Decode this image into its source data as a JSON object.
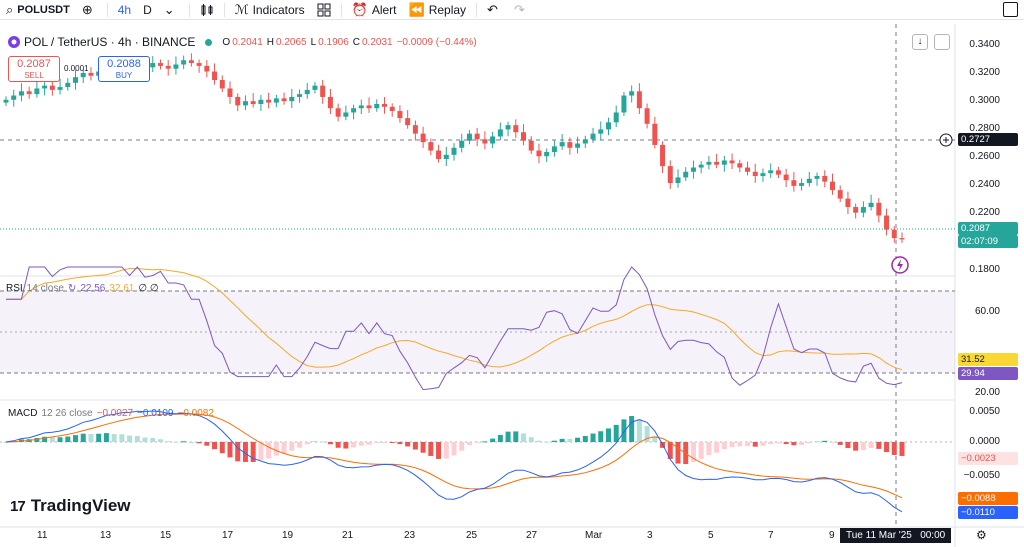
{
  "toolbar": {
    "symbol": "POLUSDT",
    "interval": "4h",
    "interval_alt": "D",
    "indicators_label": "Indicators",
    "alert_label": "Alert",
    "replay_label": "Replay"
  },
  "legend": {
    "title": "POL / TetherUS · 4h · BINANCE",
    "open_label": "O",
    "open": "0.2041",
    "high_label": "H",
    "high": "0.2065",
    "low_label": "L",
    "low": "0.1906",
    "close_label": "C",
    "close": "0.2031",
    "change": "−0.0009 (−0.44%)"
  },
  "trade": {
    "sell_price": "0.2087",
    "sell_label": "SELL",
    "buy_price": "0.2088",
    "buy_label": "BUY",
    "spread": "0.0001"
  },
  "price_axis": {
    "labels": [
      "0.3400",
      "0.3200",
      "0.3000",
      "0.2800",
      "0.2600",
      "0.2400",
      "0.2200",
      "0.1800"
    ],
    "crosshair_price": "0.2727",
    "last_price": "0.2087",
    "countdown": "02:07:09"
  },
  "rsi": {
    "label": "RSI",
    "params": "14 close",
    "value1": "22.56",
    "value2": "32.61",
    "extra": "∅ ∅",
    "axis_labels": [
      "60.00",
      "20.00"
    ],
    "tag1": "31.52",
    "tag2": "29.94"
  },
  "macd": {
    "label": "MACD",
    "params": "12 26 close",
    "hist": "−0.0027",
    "macd": "−0.0109",
    "signal": "−0.0082",
    "axis_labels": [
      "0.0050",
      "0.0000",
      "−0.0050"
    ],
    "tag_hist": "−0.0023",
    "tag_signal": "−0.0088",
    "tag_macd": "−0.0110"
  },
  "time_axis": {
    "labels": [
      "11",
      "13",
      "15",
      "17",
      "19",
      "21",
      "23",
      "25",
      "27",
      "Mar",
      "3",
      "5",
      "7",
      "9"
    ],
    "crosshair_date": "Tue 11 Mar '25",
    "crosshair_time": "00:00"
  },
  "branding": {
    "logo_text": "TradingView"
  },
  "colors": {
    "up": "#26a69a",
    "down": "#ef5350",
    "rsi": "#7e57c2",
    "macd": "#2962ff",
    "signal": "#ff6d00",
    "accent": "#2962ff"
  },
  "chart_data": {
    "type": "candlestick",
    "title": "POL / TetherUS · 4h · BINANCE",
    "ylim": [
      0.18,
      0.35
    ],
    "x_ticks": [
      "11",
      "13",
      "15",
      "17",
      "19",
      "21",
      "23",
      "25",
      "27",
      "Mar",
      "3",
      "5",
      "7",
      "9"
    ],
    "closes": [
      0.302,
      0.305,
      0.308,
      0.306,
      0.31,
      0.312,
      0.309,
      0.311,
      0.314,
      0.318,
      0.321,
      0.319,
      0.322,
      0.325,
      0.323,
      0.326,
      0.324,
      0.327,
      0.325,
      0.328,
      0.326,
      0.324,
      0.327,
      0.33,
      0.328,
      0.326,
      0.322,
      0.316,
      0.31,
      0.304,
      0.298,
      0.301,
      0.299,
      0.302,
      0.3,
      0.303,
      0.301,
      0.304,
      0.306,
      0.309,
      0.312,
      0.304,
      0.296,
      0.29,
      0.293,
      0.296,
      0.298,
      0.296,
      0.299,
      0.297,
      0.294,
      0.289,
      0.284,
      0.278,
      0.272,
      0.266,
      0.26,
      0.263,
      0.268,
      0.273,
      0.278,
      0.274,
      0.271,
      0.276,
      0.281,
      0.284,
      0.279,
      0.273,
      0.266,
      0.262,
      0.265,
      0.269,
      0.272,
      0.268,
      0.271,
      0.274,
      0.278,
      0.281,
      0.286,
      0.293,
      0.305,
      0.308,
      0.296,
      0.285,
      0.27,
      0.255,
      0.243,
      0.247,
      0.251,
      0.254,
      0.256,
      0.258,
      0.256,
      0.259,
      0.257,
      0.254,
      0.251,
      0.248,
      0.25,
      0.252,
      0.249,
      0.245,
      0.241,
      0.243,
      0.246,
      0.248,
      0.244,
      0.238,
      0.232,
      0.226,
      0.222,
      0.226,
      0.229,
      0.22,
      0.21,
      0.204,
      0.2031
    ]
  }
}
